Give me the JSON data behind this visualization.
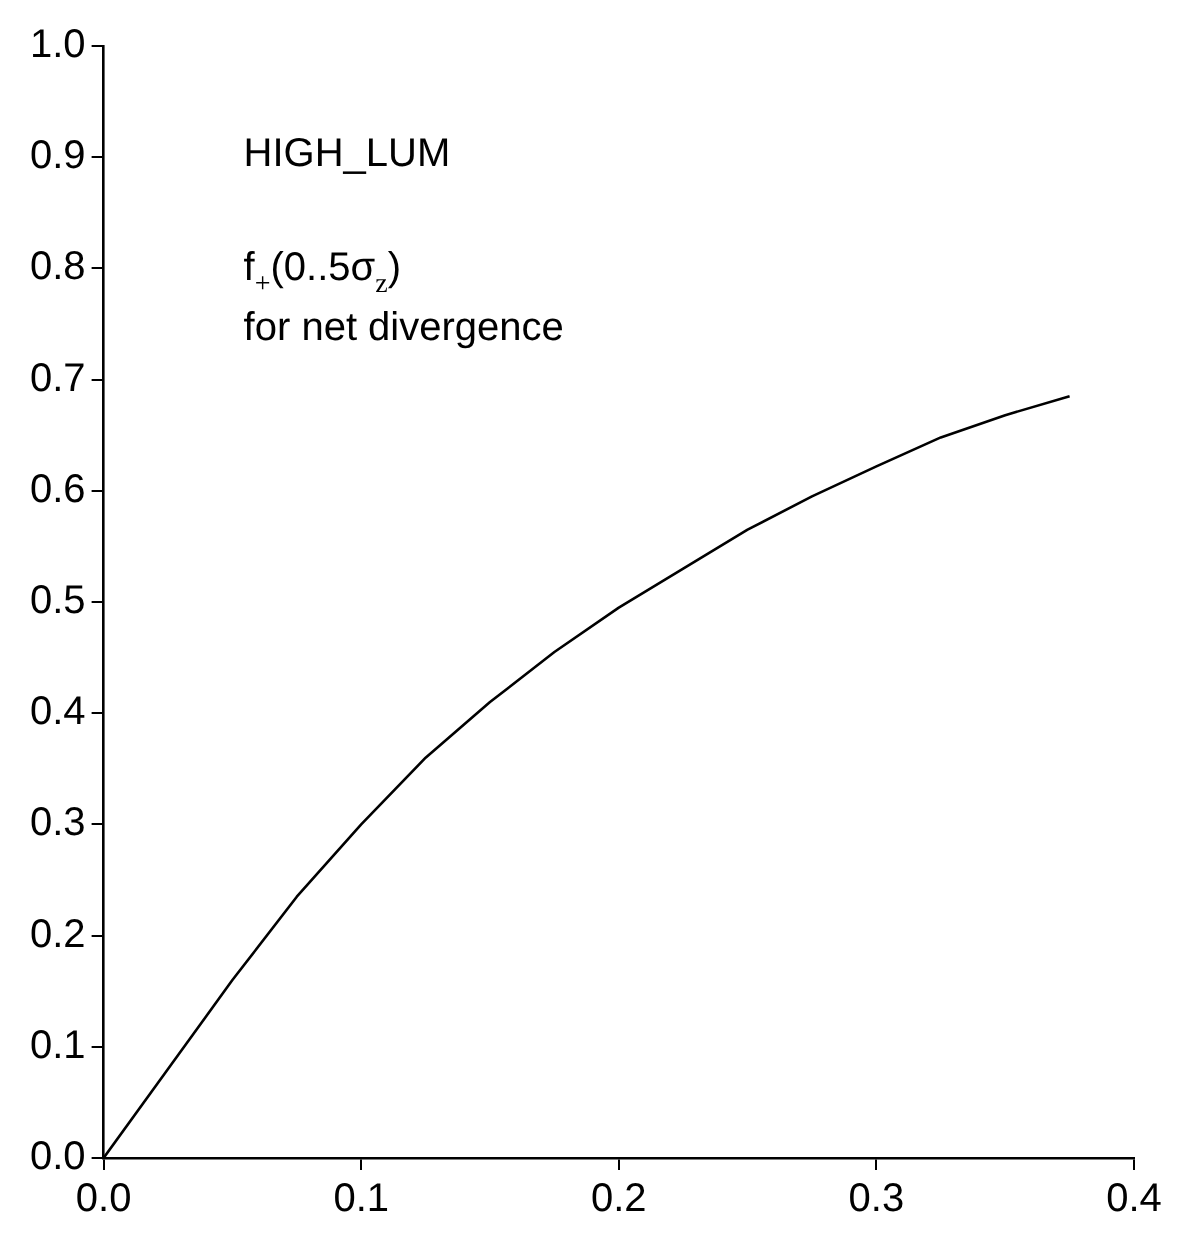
{
  "chart_data": {
    "type": "line",
    "annotations": [
      "HIGH_LUM",
      "f$_{+}$(0..5σ$_{z}$)",
      "for net divergence"
    ],
    "x": [
      0,
      0.025,
      0.05,
      0.075,
      0.1,
      0.125,
      0.15,
      0.175,
      0.2,
      0.225,
      0.25,
      0.275,
      0.3,
      0.325,
      0.35,
      0.375
    ],
    "series": [
      {
        "color": "#000000",
        "values": [
          0,
          0.08,
          0.16,
          0.235,
          0.3,
          0.36,
          0.41,
          0.455,
          0.495,
          0.53,
          0.565,
          0.595,
          0.622,
          0.648,
          0.668,
          0.685
        ]
      }
    ],
    "xlim": [
      0,
      0.4
    ],
    "ylim": [
      0,
      1
    ],
    "xticks": [
      {
        "value": 0,
        "label": "0.0"
      },
      0.1,
      0.2,
      0.3,
      0.4
    ],
    "yticks": [
      {
        "value": 0,
        "label": "0.0"
      },
      0.1,
      0.2,
      0.3,
      0.4,
      0.5,
      0.6,
      0.7,
      0.8,
      0.9,
      {
        "value": 1,
        "label": "1.0"
      }
    ],
    "grid": false,
    "legend": false,
    "marker": "none",
    "line_style": "solid"
  }
}
